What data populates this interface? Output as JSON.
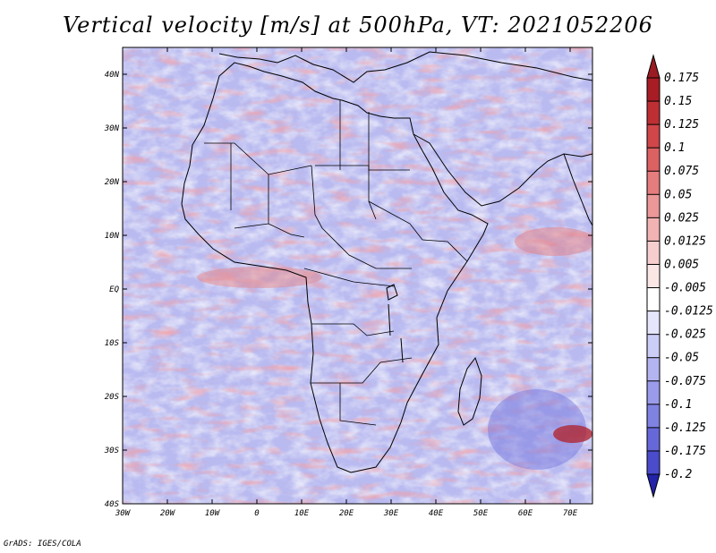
{
  "title": "Vertical velocity [m/s] at 500hPa, VT: 2021052206",
  "credit": "GrADS: IGES/COLA",
  "map": {
    "lon_range": [
      -30,
      75
    ],
    "lat_range": [
      -40,
      45
    ],
    "lon_ticks": [
      {
        "value": -30,
        "label": "30W"
      },
      {
        "value": -20,
        "label": "20W"
      },
      {
        "value": -10,
        "label": "10W"
      },
      {
        "value": 0,
        "label": "0"
      },
      {
        "value": 10,
        "label": "10E"
      },
      {
        "value": 20,
        "label": "20E"
      },
      {
        "value": 30,
        "label": "30E"
      },
      {
        "value": 40,
        "label": "40E"
      },
      {
        "value": 50,
        "label": "50E"
      },
      {
        "value": 60,
        "label": "60E"
      },
      {
        "value": 70,
        "label": "70E"
      }
    ],
    "lat_ticks": [
      {
        "value": 40,
        "label": "40N"
      },
      {
        "value": 30,
        "label": "30N"
      },
      {
        "value": 20,
        "label": "20N"
      },
      {
        "value": 10,
        "label": "10N"
      },
      {
        "value": 0,
        "label": "EQ"
      },
      {
        "value": -10,
        "label": "10S"
      },
      {
        "value": -20,
        "label": "20S"
      },
      {
        "value": -30,
        "label": "30S"
      },
      {
        "value": -40,
        "label": "40S"
      }
    ]
  },
  "colorbar": {
    "levels": [
      {
        "label": "0.175",
        "color": "#a81d25"
      },
      {
        "label": "0.15",
        "color": "#be2f33"
      },
      {
        "label": "0.125",
        "color": "#d04649"
      },
      {
        "label": "0.1",
        "color": "#dc6163"
      },
      {
        "label": "0.075",
        "color": "#e57c7d"
      },
      {
        "label": "0.05",
        "color": "#ec9798"
      },
      {
        "label": "0.025",
        "color": "#f2b3b3"
      },
      {
        "label": "0.0125",
        "color": "#f7cece"
      },
      {
        "label": "0.005",
        "color": "#fbe6e6"
      },
      {
        "label": "-0.005",
        "color": "#ffffff"
      },
      {
        "label": "-0.0125",
        "color": "#e5e5fb"
      },
      {
        "label": "-0.025",
        "color": "#cccdf6"
      },
      {
        "label": "-0.05",
        "color": "#b3b4f0"
      },
      {
        "label": "-0.075",
        "color": "#9a9bea"
      },
      {
        "label": "-0.1",
        "color": "#8082e2"
      },
      {
        "label": "-0.125",
        "color": "#6668d9"
      },
      {
        "label": "-0.175",
        "color": "#4a4ccc"
      },
      {
        "label": "-0.2",
        "color": "#2d2fb8"
      }
    ],
    "top_color": "#9b1b22",
    "bottom_color": "#2223a8"
  }
}
